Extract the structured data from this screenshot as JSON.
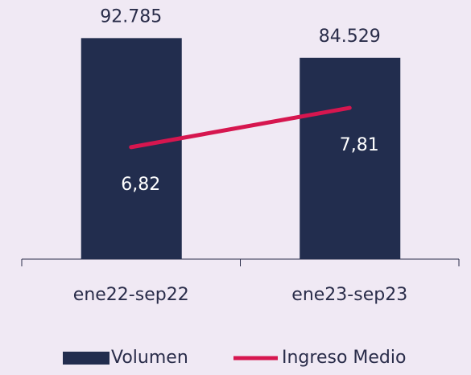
{
  "chart_data": {
    "type": "bar_line",
    "categories": [
      "ene22-sep22",
      "ene23-sep23"
    ],
    "series": [
      {
        "name": "Volumen",
        "type": "bar",
        "color": "#222d4e",
        "values": [
          92785,
          84529
        ],
        "value_labels": [
          "92.785",
          "84.529"
        ]
      },
      {
        "name": "Ingreso Medio",
        "type": "line",
        "axis": "y2",
        "color": "#d6164f",
        "values": [
          6.82,
          7.81
        ],
        "value_labels": [
          "6,82",
          "7,81"
        ]
      }
    ],
    "ylim": [
      0,
      100000
    ],
    "y2lim": [
      4,
      10
    ],
    "legend": "bottom"
  }
}
